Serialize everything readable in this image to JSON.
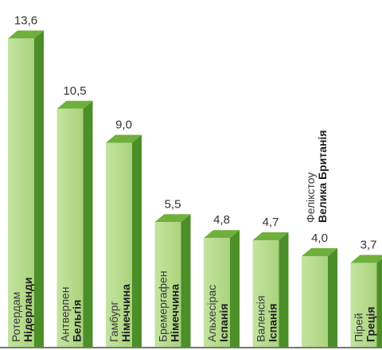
{
  "chart_data": {
    "type": "bar",
    "title": "",
    "xlabel": "",
    "ylabel": "",
    "ylim": [
      0,
      13.6
    ],
    "grid": false,
    "legend": "none",
    "categories": [
      {
        "city": "Ротердам",
        "country": "Нідерланди"
      },
      {
        "city": "Антверпен",
        "country": "Бельгія"
      },
      {
        "city": "Гамбург",
        "country": "Німеччина"
      },
      {
        "city": "Бремергафен",
        "country": "Німеччина"
      },
      {
        "city": "Альхесірас",
        "country": "Іспанія"
      },
      {
        "city": "Валенсія",
        "country": "Іспанія"
      },
      {
        "city": "Фелікстоу",
        "country": "Велика Британія"
      },
      {
        "city": "Пірей",
        "country": "Греція"
      }
    ],
    "values": [
      13.6,
      10.5,
      9.0,
      5.5,
      4.8,
      4.7,
      4.0,
      3.7
    ],
    "value_labels": [
      "13,6",
      "10,5",
      "9,0",
      "5,5",
      "4,8",
      "4,7",
      "4,0",
      "3,7"
    ],
    "colors": {
      "front": "#b6dc8e",
      "top": "#6fb03c",
      "side": "#4c8e28",
      "baseline": "#777777"
    }
  }
}
